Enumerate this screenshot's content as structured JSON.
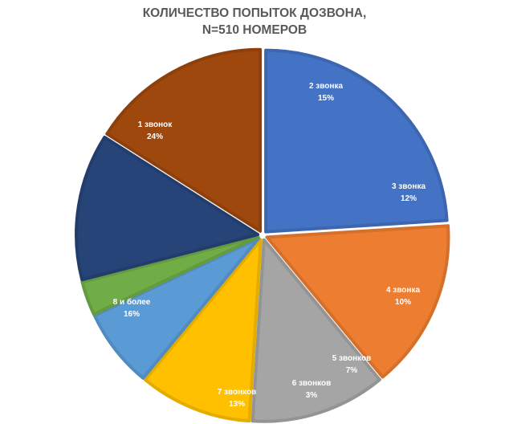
{
  "chart_data": {
    "type": "pie",
    "title_lines": [
      "КОЛИЧЕСТВО ПОПЫТОК ДОЗВОНА,",
      "N=510 НОМЕРОВ"
    ],
    "slices": [
      {
        "label": "1 звонок",
        "pct_label": "24%",
        "value": 24,
        "color": "#4472C4",
        "border": "#3D66B0"
      },
      {
        "label": "2 звонка",
        "pct_label": "15%",
        "value": 15,
        "color": "#ED7D31",
        "border": "#D5702B"
      },
      {
        "label": "3 звонка",
        "pct_label": "12%",
        "value": 12,
        "color": "#A5A5A5",
        "border": "#949494"
      },
      {
        "label": "4 звонка",
        "pct_label": "10%",
        "value": 10,
        "color": "#FFC000",
        "border": "#E5AC00"
      },
      {
        "label": "5 звонков",
        "pct_label": "7%",
        "value": 7,
        "color": "#5B9BD5",
        "border": "#518BBF"
      },
      {
        "label": "6 звонков",
        "pct_label": "3%",
        "value": 3,
        "color": "#70AD47",
        "border": "#649B40"
      },
      {
        "label": "7 звонков",
        "pct_label": "13%",
        "value": 13,
        "color": "#264478",
        "border": "#223D6C"
      },
      {
        "label": "8 и более",
        "pct_label": "16%",
        "value": 16,
        "color": "#9E480E",
        "border": "#8E400C"
      }
    ]
  }
}
